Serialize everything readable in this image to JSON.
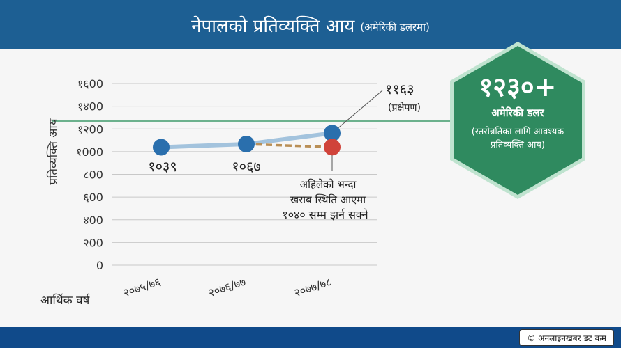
{
  "header": {
    "title": "नेपालको प्रतिव्यक्ति आय",
    "subtitle": "(अमेरिकी डलरमा)"
  },
  "chart_data": {
    "type": "line",
    "ylabel": "प्रतिव्यक्ति आय",
    "xlabel": "आर्थिक वर्ष",
    "ylim": [
      0,
      1600
    ],
    "yticks": [
      0,
      200,
      400,
      600,
      800,
      1000,
      1200,
      1400,
      1600
    ],
    "ytick_labels": [
      "0",
      "२00",
      "४00",
      "६00",
      "८00",
      "१000",
      "१२00",
      "१४00",
      "१६00"
    ],
    "categories": [
      "२०७५/७६",
      "२०७६/७७",
      "२०७७/७८"
    ],
    "series": [
      {
        "values": [
          1039,
          1067,
          1163
        ],
        "color": "#a3c3dd",
        "marker": "#2a6fad",
        "labels": [
          "१०३९",
          "१०६७",
          "११६३"
        ]
      },
      {
        "values": [
          null,
          1067,
          1040
        ],
        "color": "#b98f56",
        "dashed": true,
        "marker": "#d0433a",
        "labels": [
          null,
          null,
          null
        ]
      }
    ],
    "threshold": {
      "value": 1230,
      "color": "#3f9a6a"
    },
    "annotations": {
      "projection": "(प्रक्षेपण)",
      "worse_case": [
        "अहिलेको भन्दा",
        "खराब स्थिति आएमा",
        "१०४० सम्म झर्न सक्ने"
      ]
    },
    "grid": true
  },
  "callout": {
    "value": "१२३०+",
    "unit": "अमेरिकी डलर",
    "note": "(स्तरोन्नतिका लागि आवश्यक प्रतिव्यक्ति आय)",
    "colors": {
      "fill": "#2f8a5f",
      "border": "#bfe3cf"
    }
  },
  "footer": {
    "credit": "© अनलाइनखबर डट कम"
  }
}
